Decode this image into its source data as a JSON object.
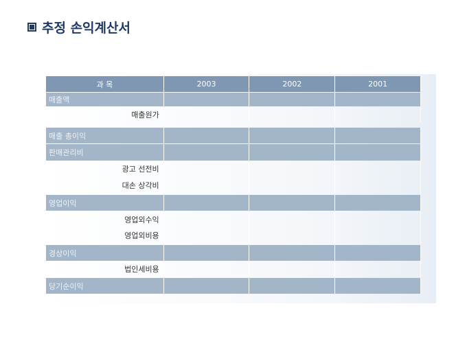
{
  "title": "추정 손익계산서",
  "table": {
    "headers": [
      "과 목",
      "2003",
      "2002",
      "2001"
    ],
    "rows": [
      {
        "label": "매출액",
        "type": "band"
      },
      {
        "label": "매출원가",
        "type": "sub"
      },
      {
        "label": "매출 총이익",
        "type": "band"
      },
      {
        "label": "판매관리비",
        "type": "band"
      },
      {
        "label": "광고 선전비",
        "type": "sub"
      },
      {
        "label": "대손 상각비",
        "type": "sub"
      },
      {
        "label": "영업이익",
        "type": "band"
      },
      {
        "label": "영업외수익",
        "type": "sub"
      },
      {
        "label": "영업외비용",
        "type": "sub"
      },
      {
        "label": "경상이익",
        "type": "band"
      },
      {
        "label": "법인세비용",
        "type": "sub"
      },
      {
        "label": "당기순이익",
        "type": "band"
      }
    ]
  }
}
